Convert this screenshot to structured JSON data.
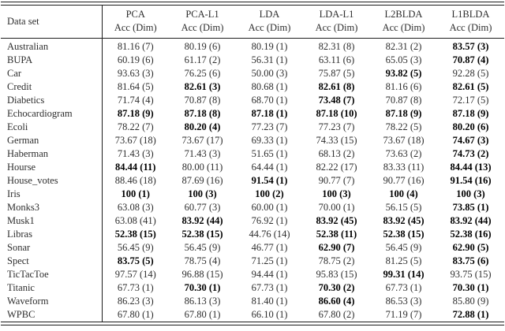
{
  "table": {
    "col1_header": "Data set",
    "subheader": "Acc (Dim)",
    "methods": [
      "PCA",
      "PCA-L1",
      "LDA",
      "LDA-L1",
      "L2BLDA",
      "L1BLDA"
    ],
    "rows": [
      {
        "dataset": "Australian",
        "cells": [
          "81.16 (7)",
          "80.19 (6)",
          "80.19 (1)",
          "82.31 (8)",
          "82.31 (2)",
          "83.57 (3)"
        ],
        "bold": [
          0,
          0,
          0,
          0,
          0,
          1
        ]
      },
      {
        "dataset": "BUPA",
        "cells": [
          "60.19 (6)",
          "61.17 (2)",
          "56.31 (1)",
          "63.11 (6)",
          "65.05 (3)",
          "70.87 (4)"
        ],
        "bold": [
          0,
          0,
          0,
          0,
          0,
          1
        ]
      },
      {
        "dataset": "Car",
        "cells": [
          "93.63 (3)",
          "76.25 (6)",
          "50.00 (3)",
          "75.87 (5)",
          "93.82 (5)",
          "92.28 (5)"
        ],
        "bold": [
          0,
          0,
          0,
          0,
          1,
          0
        ]
      },
      {
        "dataset": "Credit",
        "cells": [
          "81.64 (5)",
          "82.61 (3)",
          "80.68 (1)",
          "82.61 (8)",
          "81.16 (6)",
          "82.61 (5)"
        ],
        "bold": [
          0,
          1,
          0,
          1,
          0,
          1
        ]
      },
      {
        "dataset": "Diabetics",
        "cells": [
          "71.74 (4)",
          "70.87 (8)",
          "68.70 (1)",
          "73.48 (7)",
          "70.87 (8)",
          "72.17 (5)"
        ],
        "bold": [
          0,
          0,
          0,
          1,
          0,
          0
        ]
      },
      {
        "dataset": "Echocardiogram",
        "cells": [
          "87.18 (9)",
          "87.18 (8)",
          "87.18 (1)",
          "87.18 (10)",
          "87.18 (9)",
          "87.18 (9)"
        ],
        "bold": [
          1,
          1,
          1,
          1,
          1,
          1
        ]
      },
      {
        "dataset": "Ecoli",
        "cells": [
          "78.22 (7)",
          "80.20 (4)",
          "77.23 (7)",
          "77.23 (7)",
          "78.22 (5)",
          "80.20 (6)"
        ],
        "bold": [
          0,
          1,
          0,
          0,
          0,
          1
        ]
      },
      {
        "dataset": "German",
        "cells": [
          "73.67 (18)",
          "73.67 (17)",
          "69.33 (1)",
          "74.33 (15)",
          "73.67 (18)",
          "74.67 (3)"
        ],
        "bold": [
          0,
          0,
          0,
          0,
          0,
          1
        ]
      },
      {
        "dataset": "Haberman",
        "cells": [
          "71.43 (3)",
          "71.43 (3)",
          "51.65 (1)",
          "68.13 (2)",
          "73.63 (2)",
          "74.73 (2)"
        ],
        "bold": [
          0,
          0,
          0,
          0,
          0,
          1
        ]
      },
      {
        "dataset": "Hourse",
        "cells": [
          "84.44 (11)",
          "80.00 (11)",
          "64.44 (1)",
          "82.22 (17)",
          "83.33 (11)",
          "84.44 (13)"
        ],
        "bold": [
          1,
          0,
          0,
          0,
          0,
          1
        ]
      },
      {
        "dataset": "House_votes",
        "cells": [
          "88.46 (18)",
          "87.69 (16)",
          "91.54 (1)",
          "90.77 (7)",
          "90.77 (16)",
          "91.54 (16)"
        ],
        "bold": [
          0,
          0,
          1,
          0,
          0,
          1
        ]
      },
      {
        "dataset": "Iris",
        "cells": [
          "100 (1)",
          "100 (3)",
          "100 (2)",
          "100 (3)",
          "100 (4)",
          "100 (3)"
        ],
        "bold": [
          1,
          1,
          1,
          1,
          1,
          1
        ]
      },
      {
        "dataset": "Monks3",
        "cells": [
          "63.08 (3)",
          "60.77 (3)",
          "60.00 (1)",
          "70.00 (1)",
          "56.15 (5)",
          "73.85 (1)"
        ],
        "bold": [
          0,
          0,
          0,
          0,
          0,
          1
        ]
      },
      {
        "dataset": "Musk1",
        "cells": [
          "63.08 (41)",
          "83.92 (44)",
          "76.92 (1)",
          "83.92 (45)",
          "83.92 (45)",
          "83.92 (44)"
        ],
        "bold": [
          0,
          1,
          0,
          1,
          1,
          1
        ]
      },
      {
        "dataset": "Libras",
        "cells": [
          "52.38 (15)",
          "52.38 (15)",
          "44.76 (14)",
          "52.38 (11)",
          "52.38 (15)",
          "52.38 (16)"
        ],
        "bold": [
          1,
          1,
          0,
          1,
          1,
          1
        ]
      },
      {
        "dataset": "Sonar",
        "cells": [
          "56.45 (9)",
          "56.45 (9)",
          "46.77 (1)",
          "62.90 (7)",
          "56.45 (9)",
          "62.90 (5)"
        ],
        "bold": [
          0,
          0,
          0,
          1,
          0,
          1
        ]
      },
      {
        "dataset": "Spect",
        "cells": [
          "83.75 (5)",
          "78.75 (4)",
          "71.25 (1)",
          "78.75 (2)",
          "81.25 (5)",
          "83.75 (6)"
        ],
        "bold": [
          1,
          0,
          0,
          0,
          0,
          1
        ]
      },
      {
        "dataset": "TicTacToe",
        "cells": [
          "97.57 (14)",
          "96.88 (15)",
          "94.44 (1)",
          "95.83 (15)",
          "99.31 (14)",
          "93.75 (15)"
        ],
        "bold": [
          0,
          0,
          0,
          0,
          1,
          0
        ]
      },
      {
        "dataset": "Titanic",
        "cells": [
          "67.73 (1)",
          "70.30 (1)",
          "67.73 (1)",
          "70.30 (2)",
          "67.73 (1)",
          "70.30 (1)"
        ],
        "bold": [
          0,
          1,
          0,
          1,
          0,
          1
        ]
      },
      {
        "dataset": "Waveform",
        "cells": [
          "86.23 (3)",
          "86.13 (3)",
          "81.40 (1)",
          "86.60 (4)",
          "86.53 (3)",
          "85.80 (9)"
        ],
        "bold": [
          0,
          0,
          0,
          1,
          0,
          0
        ]
      },
      {
        "dataset": "WPBC",
        "cells": [
          "67.80 (1)",
          "67.80 (1)",
          "66.10 (1)",
          "67.80 (2)",
          "71.19 (7)",
          "72.88 (1)"
        ],
        "bold": [
          0,
          0,
          0,
          0,
          0,
          1
        ]
      }
    ]
  }
}
